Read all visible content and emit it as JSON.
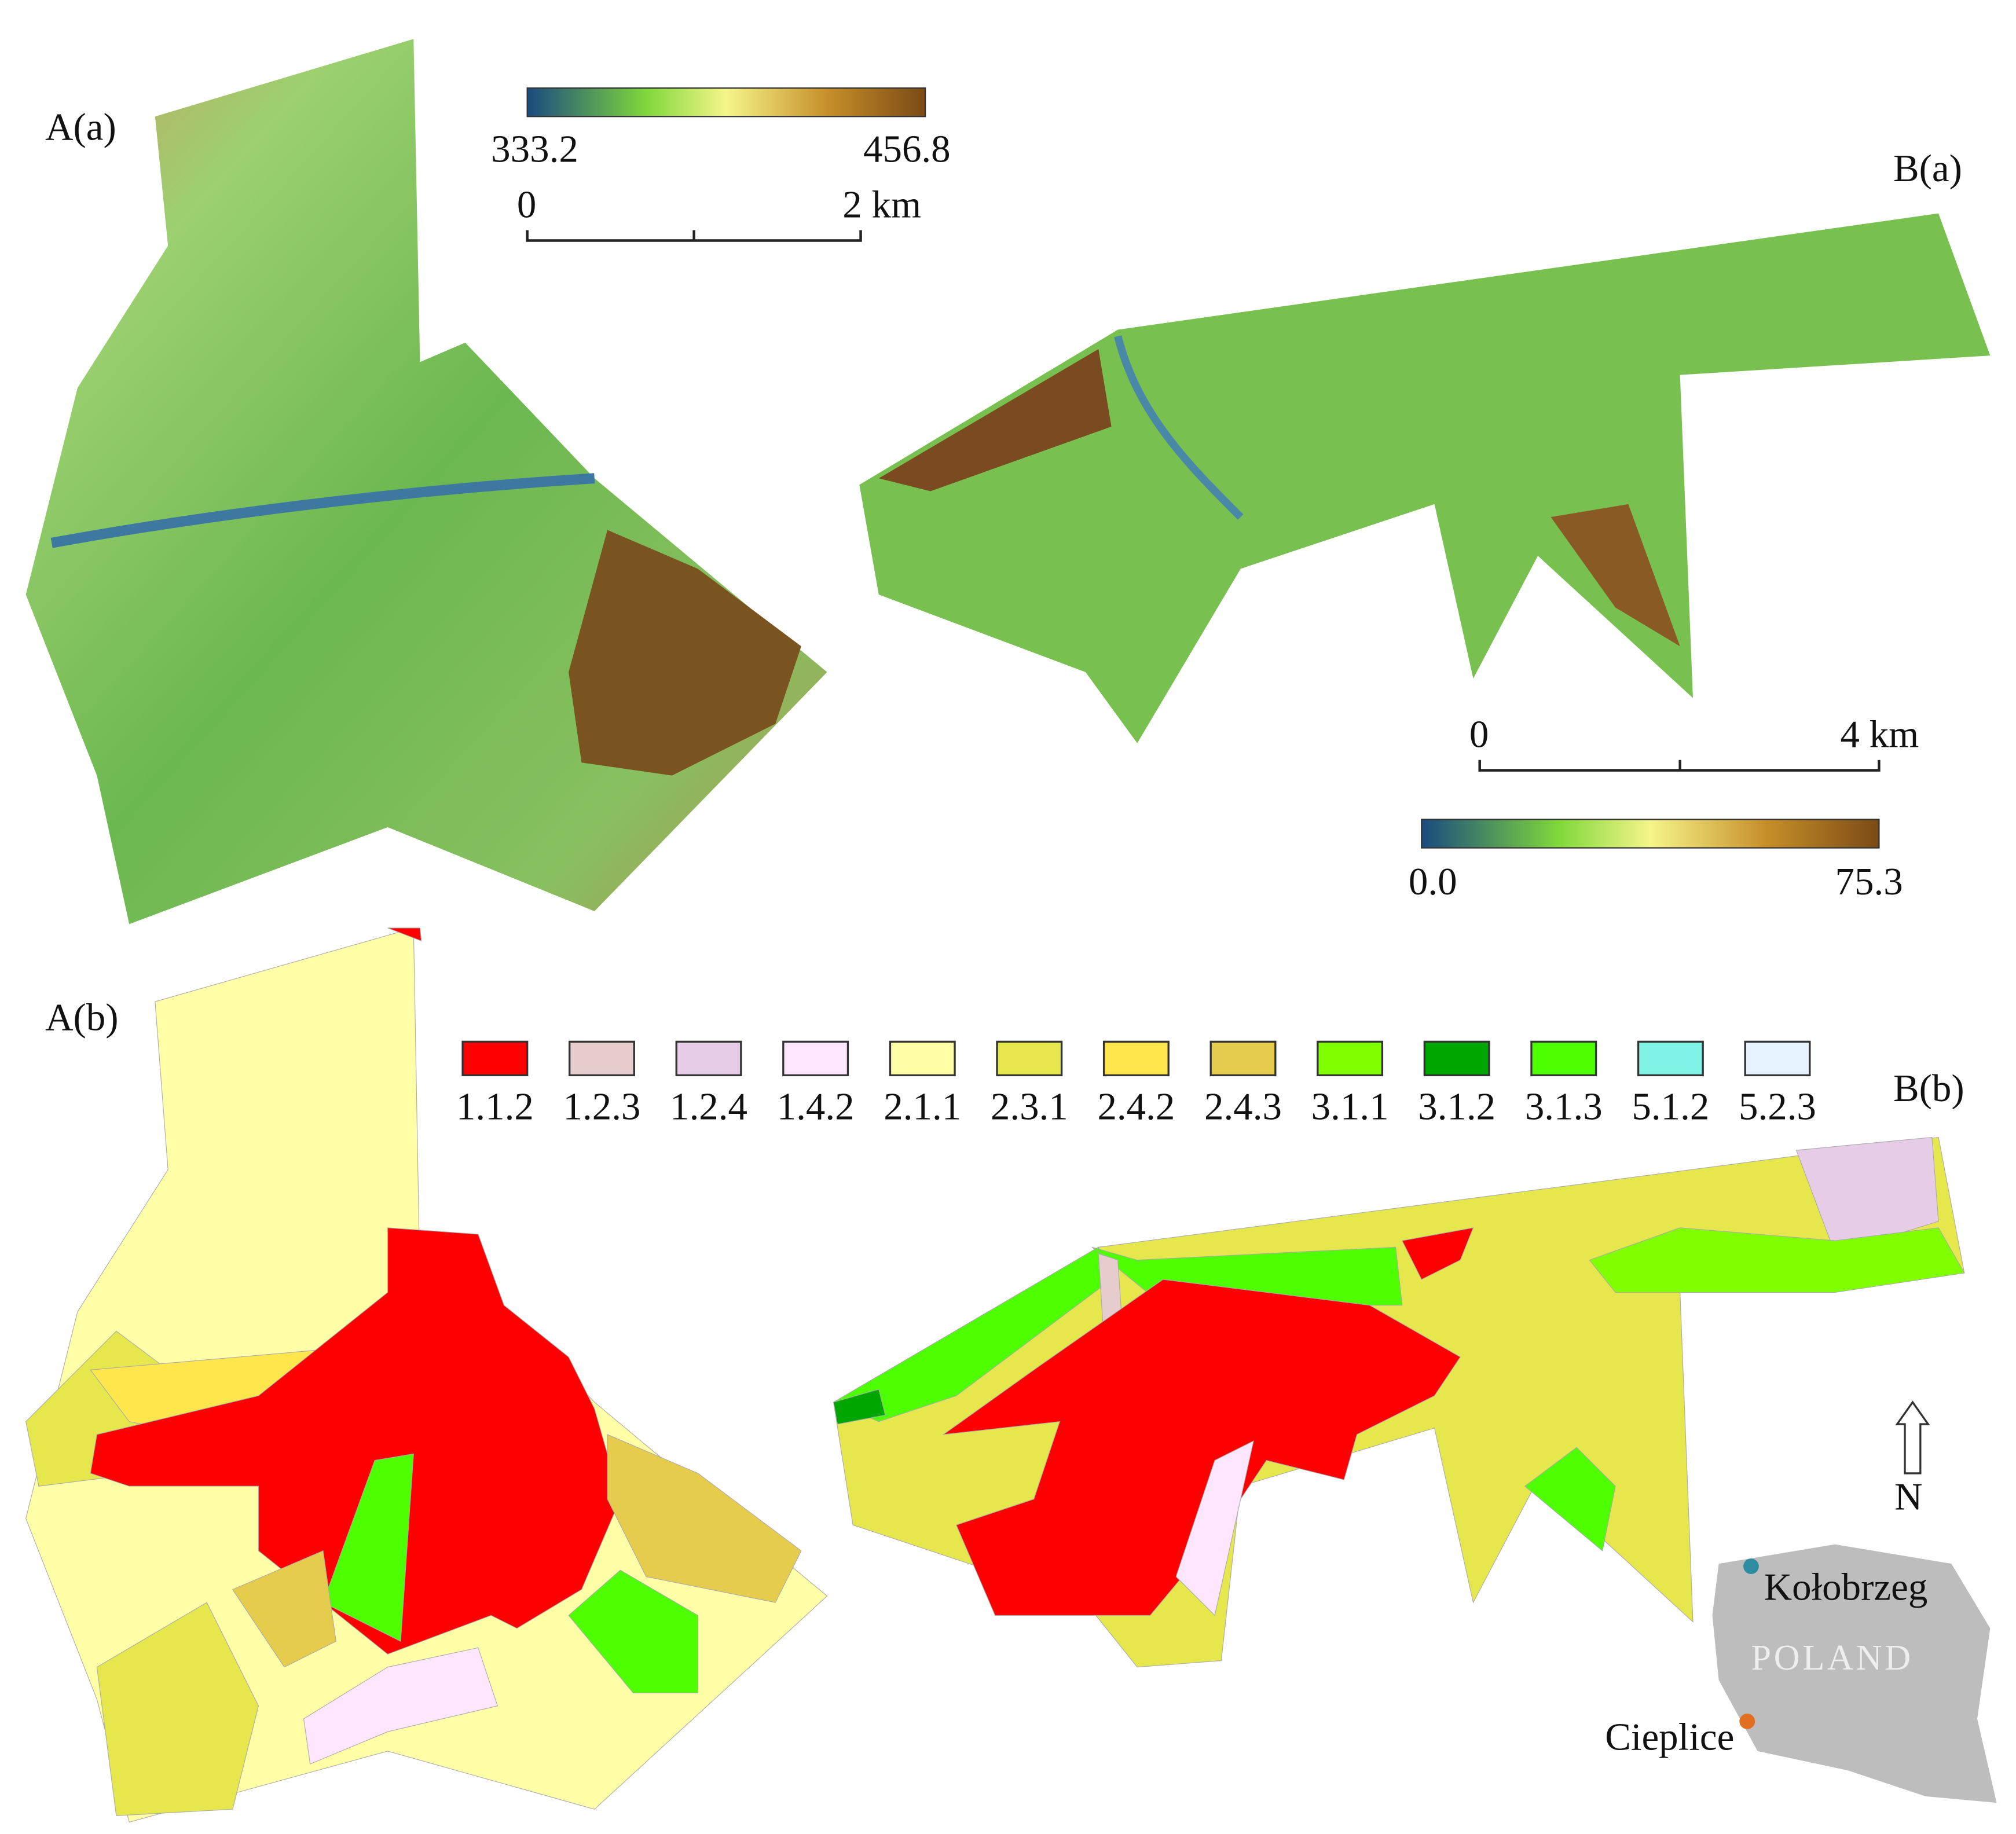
{
  "panels": {
    "a_top": "A(a)",
    "b_top": "B(a)",
    "a_bottom": "A(b)",
    "b_bottom": "B(b)"
  },
  "colorbar_a": {
    "min": "333.2",
    "max": "456.8"
  },
  "colorbar_b": {
    "min": "0.0",
    "max": "75.3"
  },
  "scalebar_a": {
    "start": "0",
    "end": "2 km"
  },
  "scalebar_b": {
    "start": "0",
    "end": "4 km"
  },
  "legend": [
    {
      "code": "1.1.2",
      "color": "#ff0000"
    },
    {
      "code": "1.2.3",
      "color": "#e6cccc"
    },
    {
      "code": "1.2.4",
      "color": "#e6cce6"
    },
    {
      "code": "1.4.2",
      "color": "#ffe6ff"
    },
    {
      "code": "2.1.1",
      "color": "#ffffa8"
    },
    {
      "code": "2.3.1",
      "color": "#e6e64d"
    },
    {
      "code": "2.4.2",
      "color": "#ffe64d"
    },
    {
      "code": "2.4.3",
      "color": "#e6cc4d"
    },
    {
      "code": "3.1.1",
      "color": "#80ff00"
    },
    {
      "code": "3.1.2",
      "color": "#00a600"
    },
    {
      "code": "3.1.3",
      "color": "#4dff00"
    },
    {
      "code": "5.1.2",
      "color": "#80f2e6"
    },
    {
      "code": "5.2.3",
      "color": "#e6f2ff"
    }
  ],
  "north": "N",
  "inset": {
    "city1": "Kołobrzeg",
    "country": "POLAND",
    "city2": "Cieplice"
  }
}
